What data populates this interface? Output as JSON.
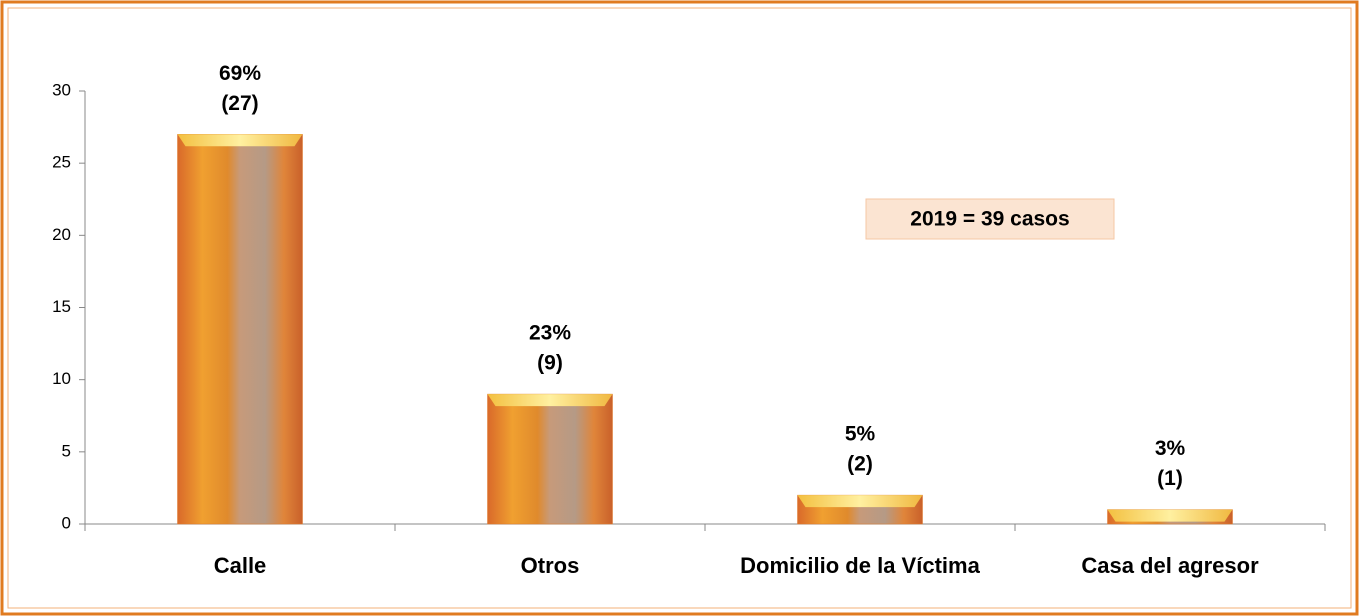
{
  "chart_data": {
    "type": "bar",
    "categories": [
      "Calle",
      "Otros",
      "Domicilio de la Víctima",
      "Casa del agresor"
    ],
    "values": [
      27,
      9,
      2,
      1
    ],
    "value_labels": [
      "(27)",
      "(9)",
      "(2)",
      "(1)"
    ],
    "percent_labels": [
      "69%",
      "23%",
      "5%",
      "3%"
    ],
    "color": "#e07b2a",
    "ylim": [
      0,
      30
    ],
    "yticks": [
      0,
      5,
      10,
      15,
      20,
      25,
      30
    ],
    "annotation": "2019 = 39 casos"
  }
}
